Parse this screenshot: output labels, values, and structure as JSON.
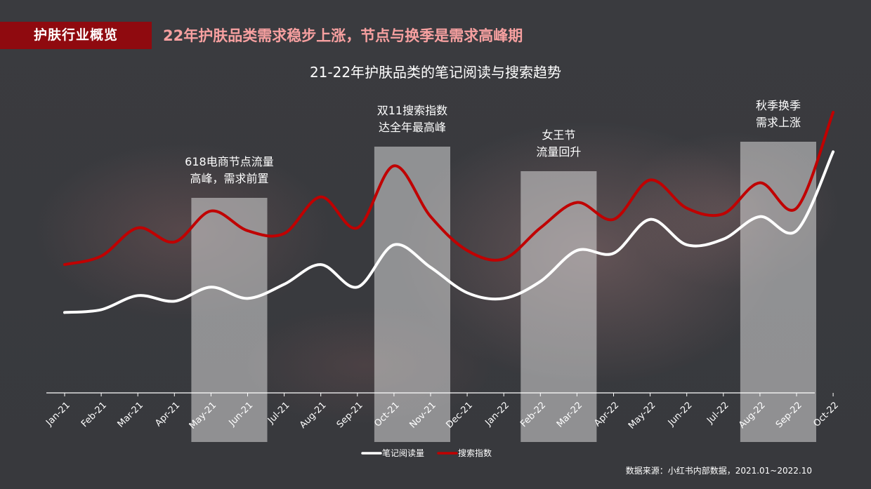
{
  "header": {
    "tag": "护肤行业概览",
    "headline": "22年护肤品类需求稳步上涨，节点与换季是需求高峰期"
  },
  "colors": {
    "accent": "#8f0a0f",
    "headline": "#f7a0a0",
    "reading_series": "#ffffff",
    "search_series": "#c00000",
    "highlight_band": "#d9d9d9"
  },
  "source": "数据来源：小红书内部数据，2021.01~2022.10",
  "chart_data": {
    "type": "line",
    "title": "21-22年护肤品类的笔记阅读与搜索趋势",
    "xlabel": "",
    "ylabel": "",
    "grid": false,
    "y_axis_shown": false,
    "ylim": [
      0,
      100
    ],
    "legend_position": "bottom-center",
    "categories": [
      "Jan-21",
      "Feb-21",
      "Mar-21",
      "Apr-21",
      "May-21",
      "Jun-21",
      "Jul-21",
      "Aug-21",
      "Sep-21",
      "Oct-21",
      "Nov-21",
      "Dec-21",
      "Jan-22",
      "Feb-22",
      "Mar-22",
      "Apr-22",
      "May-22",
      "Jun-22",
      "Jul-22",
      "Aug-22",
      "Sep-22",
      "Oct-22"
    ],
    "series": [
      {
        "name": "笔记阅读量",
        "color": "#ffffff",
        "values": [
          29,
          30,
          35,
          33,
          38,
          34,
          39,
          46,
          38,
          53,
          45,
          36,
          34,
          40,
          51,
          50,
          62,
          53,
          55,
          63,
          58,
          86
        ]
      },
      {
        "name": "搜索指数",
        "color": "#c00000",
        "values": [
          46,
          49,
          59,
          54,
          65,
          58,
          57,
          70,
          59,
          81,
          63,
          51,
          48,
          59,
          68,
          62,
          76,
          66,
          64,
          75,
          66,
          100
        ]
      }
    ],
    "annotations": [
      {
        "lines": [
          "618电商节点流量",
          "高峰，需求前置"
        ],
        "band": [
          "May-21",
          "Jun-21"
        ]
      },
      {
        "lines": [
          "双11搜索指数",
          "达全年最高峰"
        ],
        "band": [
          "Oct-21",
          "Nov-21"
        ]
      },
      {
        "lines": [
          "女王节",
          "流量回升"
        ],
        "band": [
          "Feb-22",
          "Mar-22"
        ]
      },
      {
        "lines": [
          "秋季换季",
          "需求上涨"
        ],
        "band": [
          "Aug-22",
          "Sep-22"
        ]
      }
    ]
  }
}
